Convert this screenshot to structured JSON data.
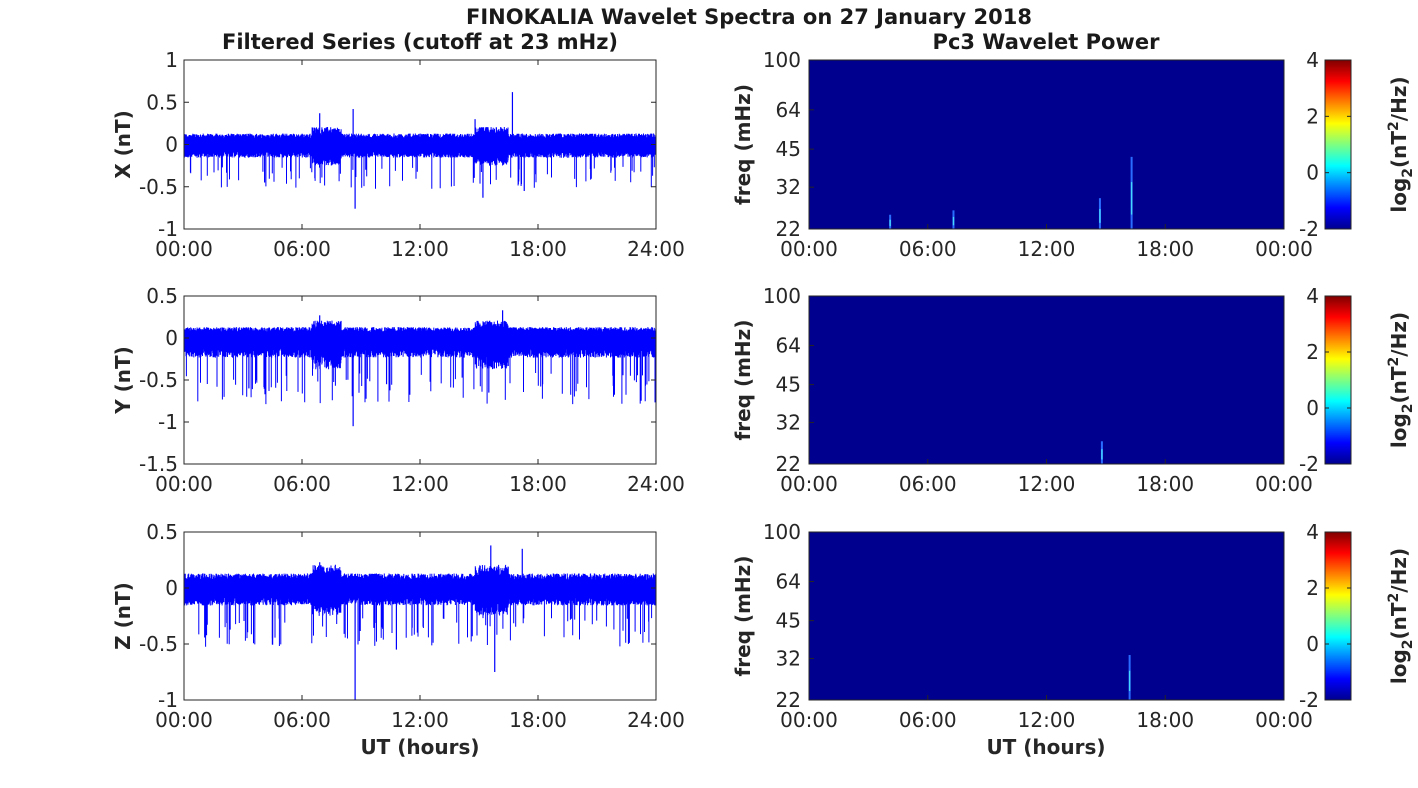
{
  "figure": {
    "title": "FINOKALIA Wavelet Spectra on 27 January 2018",
    "left_title": "Filtered Series (cutoff at 23 mHz)",
    "right_title": "Pc3 Wavelet Power",
    "xlabel": "UT (hours)"
  },
  "colors": {
    "series": "#0000ff",
    "spectrum_bg": "#00008f",
    "axes": "#262626"
  },
  "chart_data": [
    {
      "type": "line",
      "ylabel": "X (nT)",
      "xlim_hours": [
        0,
        24
      ],
      "ylim": [
        -1,
        1
      ],
      "x_ticks": [
        "00:00",
        "06:00",
        "12:00",
        "18:00",
        "24:00"
      ],
      "y_ticks": [
        1,
        0.5,
        0,
        -0.5,
        -1
      ],
      "series": [
        {
          "color": "#0000ff",
          "baseline": 0,
          "band": [
            -0.12,
            0.1
          ],
          "spikes": [
            [
              6.9,
              0.37
            ],
            [
              8.6,
              0.42
            ],
            [
              8.7,
              -0.76
            ],
            [
              15.2,
              -0.63
            ],
            [
              16.7,
              0.62
            ],
            [
              17.3,
              -0.55
            ],
            [
              4.1,
              -0.45
            ],
            [
              14.8,
              0.3
            ]
          ]
        }
      ]
    },
    {
      "type": "line",
      "ylabel": "Y (nT)",
      "xlim_hours": [
        0,
        24
      ],
      "ylim": [
        -1.5,
        0.5
      ],
      "x_ticks": [
        "00:00",
        "06:00",
        "12:00",
        "18:00",
        "24:00"
      ],
      "y_ticks": [
        0.5,
        0,
        -0.5,
        -1,
        -1.5
      ],
      "series": [
        {
          "color": "#0000ff",
          "baseline": 0,
          "band": [
            -0.18,
            0.1
          ],
          "spikes": [
            [
              6.9,
              0.27
            ],
            [
              8.6,
              -1.05
            ],
            [
              16.2,
              0.33
            ],
            [
              15.5,
              -0.65
            ],
            [
              3.3,
              -0.6
            ],
            [
              10.3,
              -0.55
            ]
          ]
        }
      ]
    },
    {
      "type": "line",
      "ylabel": "Z (nT)",
      "xlim_hours": [
        0,
        24
      ],
      "ylim": [
        -1,
        0.5
      ],
      "x_ticks": [
        "00:00",
        "06:00",
        "12:00",
        "18:00",
        "24:00"
      ],
      "y_ticks": [
        0.5,
        0,
        -0.5,
        -1
      ],
      "series": [
        {
          "color": "#0000ff",
          "baseline": 0,
          "band": [
            -0.12,
            0.1
          ],
          "spikes": [
            [
              6.9,
              0.23
            ],
            [
              8.7,
              -1.0
            ],
            [
              15.6,
              0.38
            ],
            [
              17.2,
              0.35
            ],
            [
              15.8,
              -0.75
            ],
            [
              10.8,
              -0.55
            ],
            [
              4.5,
              -0.45
            ]
          ]
        }
      ]
    },
    {
      "type": "heatmap",
      "ylabel": "freq (mHz)",
      "xlim_hours": [
        0,
        24
      ],
      "ylim_mhz": [
        22,
        100
      ],
      "y_scale": "log",
      "x_ticks": [
        "00:00",
        "06:00",
        "12:00",
        "18:00",
        "00:00"
      ],
      "y_ticks": [
        100,
        64,
        45,
        32,
        22
      ],
      "colorbar": {
        "label": "log2(nT^2/Hz)",
        "label_main": "log",
        "label_sub": "2",
        "label_rest": "(nT",
        "label_sup": "2",
        "label_end": "/Hz)",
        "ticks": [
          4,
          2,
          0,
          -2
        ],
        "range": [
          -2,
          4
        ]
      },
      "features": [
        [
          14.7,
          29
        ],
        [
          16.3,
          42
        ],
        [
          4.1,
          25
        ],
        [
          7.3,
          26
        ]
      ]
    },
    {
      "type": "heatmap",
      "ylabel": "freq (mHz)",
      "xlim_hours": [
        0,
        24
      ],
      "ylim_mhz": [
        22,
        100
      ],
      "y_scale": "log",
      "x_ticks": [
        "00:00",
        "06:00",
        "12:00",
        "18:00",
        "00:00"
      ],
      "y_ticks": [
        100,
        64,
        45,
        32,
        22
      ],
      "colorbar": {
        "label": "log2(nT^2/Hz)",
        "label_main": "log",
        "label_sub": "2",
        "label_rest": "(nT",
        "label_sup": "2",
        "label_end": "/Hz)",
        "ticks": [
          4,
          2,
          0,
          -2
        ],
        "range": [
          -2,
          4
        ]
      },
      "features": [
        [
          14.8,
          27
        ]
      ]
    },
    {
      "type": "heatmap",
      "ylabel": "freq (mHz)",
      "xlim_hours": [
        0,
        24
      ],
      "ylim_mhz": [
        22,
        100
      ],
      "y_scale": "log",
      "x_ticks": [
        "00:00",
        "06:00",
        "12:00",
        "18:00",
        "00:00"
      ],
      "y_ticks": [
        100,
        64,
        45,
        32,
        22
      ],
      "colorbar": {
        "label": "log2(nT^2/Hz)",
        "label_main": "log",
        "label_sub": "2",
        "label_rest": "(nT",
        "label_sup": "2",
        "label_end": "/Hz)",
        "ticks": [
          4,
          2,
          0,
          -2
        ],
        "range": [
          -2,
          4
        ]
      },
      "features": [
        [
          16.2,
          33
        ]
      ]
    }
  ]
}
